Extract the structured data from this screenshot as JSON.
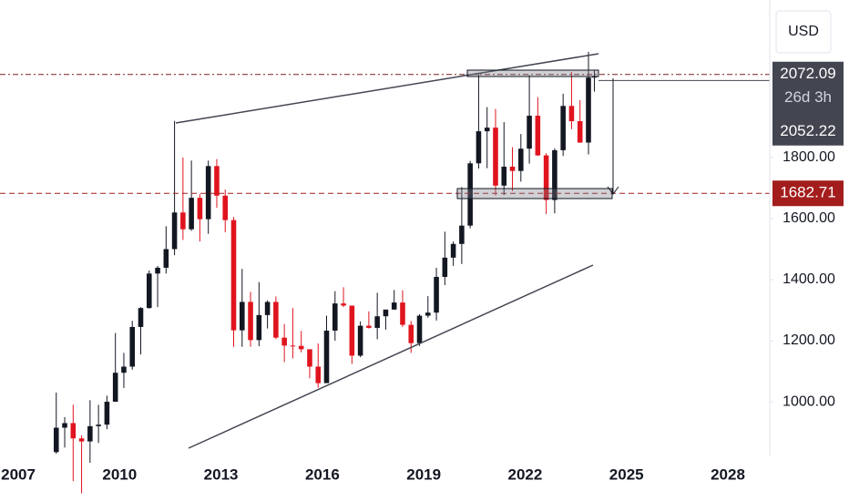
{
  "chart_data": {
    "type": "candlestick",
    "currency": "USD",
    "x": [
      2008.125,
      2008.375,
      2008.625,
      2008.875,
      2009.125,
      2009.375,
      2009.625,
      2009.875,
      2010.125,
      2010.375,
      2010.625,
      2010.875,
      2011.125,
      2011.375,
      2011.625,
      2011.875,
      2012.125,
      2012.375,
      2012.625,
      2012.875,
      2013.125,
      2013.375,
      2013.625,
      2013.875,
      2014.125,
      2014.375,
      2014.625,
      2014.875,
      2015.125,
      2015.375,
      2015.625,
      2015.875,
      2016.125,
      2016.375,
      2016.625,
      2016.875,
      2017.125,
      2017.375,
      2017.625,
      2017.875,
      2018.125,
      2018.375,
      2018.625,
      2018.875,
      2019.125,
      2019.375,
      2019.625,
      2019.875,
      2020.125,
      2020.375,
      2020.625,
      2020.875,
      2021.125,
      2021.375,
      2021.625,
      2021.875,
      2022.125,
      2022.375,
      2022.625,
      2022.875,
      2023.125,
      2023.375,
      2023.625,
      2023.875,
      2024.05
    ],
    "open": [
      835,
      915,
      930,
      880,
      870,
      920,
      925,
      1000,
      1095,
      1115,
      1245,
      1307,
      1420,
      1439,
      1500,
      1620,
      1565,
      1668,
      1598,
      1772,
      1675,
      1595,
      1234,
      1327,
      1202,
      1284,
      1327,
      1210,
      1184,
      1183,
      1172,
      1115,
      1061,
      1233,
      1322,
      1315,
      1151,
      1249,
      1242,
      1280,
      1302,
      1325,
      1252,
      1192,
      1282,
      1292,
      1409,
      1472,
      1517,
      1577,
      1781,
      1886,
      1898,
      1708,
      1770,
      1756,
      1829,
      1937,
      1807,
      1661,
      1824,
      1969,
      1919,
      1849,
      2062
    ],
    "high": [
      1030,
      950,
      990,
      890,
      1005,
      990,
      1020,
      1225,
      1160,
      1265,
      1310,
      1430,
      1445,
      1575,
      1920,
      1800,
      1790,
      1680,
      1790,
      1795,
      1695,
      1605,
      1435,
      1360,
      1392,
      1332,
      1345,
      1255,
      1307,
      1232,
      1170,
      1191,
      1282,
      1362,
      1375,
      1315,
      1263,
      1296,
      1357,
      1300,
      1366,
      1365,
      1265,
      1287,
      1346,
      1439,
      1557,
      1525,
      1703,
      1789,
      2075,
      1965,
      1959,
      1916,
      1834,
      1877,
      2070,
      1998,
      1814,
      1830,
      2009,
      2080,
      1988,
      2146,
      2088
    ],
    "low": [
      830,
      850,
      740,
      700,
      800,
      865,
      910,
      1000,
      1045,
      1105,
      1155,
      1305,
      1310,
      1420,
      1480,
      1530,
      1560,
      1525,
      1550,
      1635,
      1555,
      1180,
      1180,
      1180,
      1182,
      1240,
      1205,
      1130,
      1142,
      1162,
      1077,
      1046,
      1062,
      1200,
      1310,
      1124,
      1146,
      1240,
      1205,
      1236,
      1302,
      1245,
      1160,
      1183,
      1275,
      1266,
      1382,
      1445,
      1451,
      1568,
      1764,
      1765,
      1676,
      1677,
      1690,
      1721,
      1780,
      1805,
      1615,
      1617,
      1805,
      1893,
      1848,
      1810,
      2016
    ],
    "close": [
      915,
      930,
      880,
      870,
      920,
      925,
      1000,
      1095,
      1115,
      1245,
      1307,
      1420,
      1439,
      1500,
      1620,
      1565,
      1668,
      1598,
      1772,
      1675,
      1595,
      1234,
      1327,
      1202,
      1284,
      1327,
      1210,
      1184,
      1183,
      1172,
      1115,
      1061,
      1233,
      1322,
      1315,
      1151,
      1249,
      1242,
      1280,
      1302,
      1325,
      1252,
      1192,
      1282,
      1292,
      1409,
      1472,
      1517,
      1577,
      1781,
      1886,
      1898,
      1708,
      1770,
      1756,
      1829,
      1937,
      1807,
      1661,
      1824,
      1969,
      1919,
      1849,
      2062,
      2065
    ],
    "up_color": "#131722",
    "down_color": "#e0141e",
    "xlim": [
      2006.46,
      2029.24
    ],
    "xticks": [
      2007,
      2010,
      2013,
      2016,
      2019,
      2022,
      2025,
      2028
    ],
    "ylim": [
      839,
      2316
    ],
    "yticks": [
      {
        "value": 1000,
        "label": "1000.00"
      },
      {
        "value": 1200,
        "label": "1200.00"
      },
      {
        "value": 1400,
        "label": "1400.00"
      },
      {
        "value": 1600,
        "label": "1600.00"
      },
      {
        "value": 1800,
        "label": "1800.00"
      }
    ],
    "last_price": 2072.09,
    "countdown": "26d 3h",
    "marker_price": 2052.22,
    "level_price": 1682.71
  }
}
